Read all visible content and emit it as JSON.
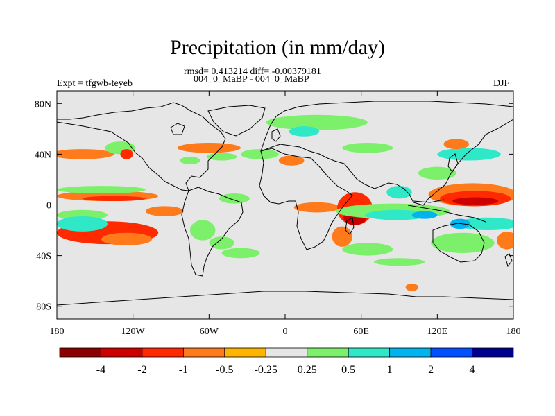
{
  "header": {
    "title": "Precipitation (in mm/day)",
    "stats": "rmsd= 0.413214 diff= -0.00379181",
    "experiment_ids": "004_0_MaBP - 004_0_MaBP",
    "expt_label": "Expt = tfgwb-teyeb",
    "season": "DJF"
  },
  "axes": {
    "x_ticks": [
      "180",
      "120W",
      "60W",
      "0",
      "60E",
      "120E",
      "180"
    ],
    "y_ticks": [
      "80N",
      "40N",
      "0",
      "40S",
      "80S"
    ]
  },
  "colorbar": {
    "labels": [
      "-4",
      "-2",
      "-1",
      "-0.5",
      "-0.25",
      "0.25",
      "0.5",
      "1",
      "2",
      "4"
    ],
    "colors": [
      "#8b0000",
      "#cd0000",
      "#ff2a00",
      "#ff7a1a",
      "#ffb400",
      "#e6e6e6",
      "#7cf06a",
      "#2ee8c8",
      "#00b4f0",
      "#0050ff",
      "#000090"
    ]
  },
  "chart_data": {
    "type": "map",
    "projection": "cylindrical equidistant",
    "lon_range": [
      -180,
      180
    ],
    "lat_range": [
      -90,
      90
    ],
    "neutral_color": "#e6e6e6",
    "levels": [
      -4,
      -2,
      -1,
      -0.5,
      -0.25,
      0.25,
      0.5,
      1,
      2,
      4
    ],
    "anomalies": [
      {
        "lon": -140,
        "lat": 7,
        "rx": 40,
        "ry": 4,
        "value": -0.5
      },
      {
        "lon": -135,
        "lat": 5,
        "rx": 25,
        "ry": 2,
        "value": -1
      },
      {
        "lon": -145,
        "lat": 12,
        "rx": 35,
        "ry": 3,
        "value": 0.5
      },
      {
        "lon": -160,
        "lat": -8,
        "rx": 20,
        "ry": 4,
        "value": 0.5
      },
      {
        "lon": -140,
        "lat": -22,
        "rx": 40,
        "ry": 9,
        "value": -1
      },
      {
        "lon": -125,
        "lat": -27,
        "rx": 20,
        "ry": 5,
        "value": -0.5
      },
      {
        "lon": -160,
        "lat": -15,
        "rx": 20,
        "ry": 6,
        "value": 1
      },
      {
        "lon": -95,
        "lat": -5,
        "rx": 15,
        "ry": 4,
        "value": -0.5
      },
      {
        "lon": -160,
        "lat": 40,
        "rx": 25,
        "ry": 4,
        "value": -0.5
      },
      {
        "lon": -130,
        "lat": 45,
        "rx": 12,
        "ry": 5,
        "value": 0.5
      },
      {
        "lon": -125,
        "lat": 40,
        "rx": 5,
        "ry": 4,
        "value": -1
      },
      {
        "lon": -60,
        "lat": 45,
        "rx": 25,
        "ry": 4,
        "value": -0.5
      },
      {
        "lon": -50,
        "lat": 38,
        "rx": 12,
        "ry": 3,
        "value": 0.5
      },
      {
        "lon": -75,
        "lat": 35,
        "rx": 8,
        "ry": 3,
        "value": 0.5
      },
      {
        "lon": -65,
        "lat": -20,
        "rx": 10,
        "ry": 8,
        "value": 0.5
      },
      {
        "lon": -50,
        "lat": -30,
        "rx": 10,
        "ry": 5,
        "value": 0.5
      },
      {
        "lon": -35,
        "lat": -38,
        "rx": 15,
        "ry": 4,
        "value": 0.5
      },
      {
        "lon": -40,
        "lat": 5,
        "rx": 12,
        "ry": 4,
        "value": 0.5
      },
      {
        "lon": -20,
        "lat": 40,
        "rx": 15,
        "ry": 4,
        "value": 0.5
      },
      {
        "lon": 25,
        "lat": 65,
        "rx": 40,
        "ry": 6,
        "value": 0.5
      },
      {
        "lon": 15,
        "lat": 58,
        "rx": 12,
        "ry": 4,
        "value": 1
      },
      {
        "lon": 5,
        "lat": 35,
        "rx": 10,
        "ry": 4,
        "value": -0.5
      },
      {
        "lon": 25,
        "lat": -2,
        "rx": 18,
        "ry": 4,
        "value": -0.5
      },
      {
        "lon": 55,
        "lat": -3,
        "rx": 14,
        "ry": 13,
        "value": -1
      },
      {
        "lon": 55,
        "lat": -10,
        "rx": 9,
        "ry": 6,
        "value": -2
      },
      {
        "lon": 45,
        "lat": -25,
        "rx": 8,
        "ry": 8,
        "value": -0.5
      },
      {
        "lon": 65,
        "lat": -35,
        "rx": 20,
        "ry": 5,
        "value": 0.5
      },
      {
        "lon": 65,
        "lat": 45,
        "rx": 20,
        "ry": 4,
        "value": 0.5
      },
      {
        "lon": 85,
        "lat": -5,
        "rx": 45,
        "ry": 6,
        "value": 0.5
      },
      {
        "lon": 88,
        "lat": -8,
        "rx": 25,
        "ry": 4,
        "value": 1
      },
      {
        "lon": 90,
        "lat": 10,
        "rx": 10,
        "ry": 5,
        "value": 1
      },
      {
        "lon": 110,
        "lat": -8,
        "rx": 10,
        "ry": 3,
        "value": 2
      },
      {
        "lon": 120,
        "lat": 25,
        "rx": 15,
        "ry": 5,
        "value": 0.5
      },
      {
        "lon": 148,
        "lat": 8,
        "rx": 35,
        "ry": 9,
        "value": -0.5
      },
      {
        "lon": 150,
        "lat": 5,
        "rx": 28,
        "ry": 6,
        "value": -1
      },
      {
        "lon": 150,
        "lat": 3,
        "rx": 18,
        "ry": 3,
        "value": -2
      },
      {
        "lon": 145,
        "lat": 40,
        "rx": 25,
        "ry": 5,
        "value": 1
      },
      {
        "lon": 135,
        "lat": 48,
        "rx": 10,
        "ry": 4,
        "value": -0.5
      },
      {
        "lon": 160,
        "lat": -15,
        "rx": 25,
        "ry": 5,
        "value": 1
      },
      {
        "lon": 138,
        "lat": -15,
        "rx": 8,
        "ry": 4,
        "value": 2
      },
      {
        "lon": 140,
        "lat": -30,
        "rx": 25,
        "ry": 8,
        "value": 0.5
      },
      {
        "lon": 175,
        "lat": -28,
        "rx": 8,
        "ry": 7,
        "value": -0.5
      },
      {
        "lon": 90,
        "lat": -45,
        "rx": 20,
        "ry": 3,
        "value": 0.5
      },
      {
        "lon": 100,
        "lat": -65,
        "rx": 5,
        "ry": 3,
        "value": -0.5
      }
    ]
  }
}
